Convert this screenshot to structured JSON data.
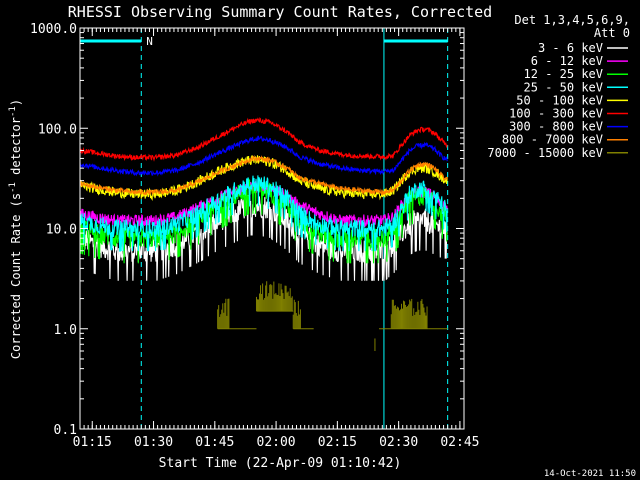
{
  "chart_data": {
    "type": "line",
    "title": "RHESSI Observing Summary Count Rates, Corrected",
    "xlabel": "Start Time (22-Apr-09 01:10:42)",
    "ylabel": "Corrected Count Rate (s^-1 detector^-1)",
    "ylabel_parts": {
      "main": "Corrected Count Rate (s",
      "sup1": "-1",
      "mid": " detector",
      "sup2": "-1",
      "end": ")"
    },
    "yscale": "log",
    "ylim": [
      0.1,
      1000
    ],
    "xlim_minutes": [
      1.3,
      95.3
    ],
    "x_ticks": [
      {
        "label": "01:15",
        "minutes": 4.3
      },
      {
        "label": "01:30",
        "minutes": 19.3
      },
      {
        "label": "01:45",
        "minutes": 34.3
      },
      {
        "label": "02:00",
        "minutes": 49.3
      },
      {
        "label": "02:15",
        "minutes": 64.3
      },
      {
        "label": "02:30",
        "minutes": 79.3
      },
      {
        "label": "02:45",
        "minutes": 94.3
      }
    ],
    "y_ticks": [
      {
        "label": "0.1",
        "value": 0.1
      },
      {
        "label": "1.0",
        "value": 1
      },
      {
        "label": "10.0",
        "value": 10
      },
      {
        "label": "100.0",
        "value": 100
      },
      {
        "label": "1000.0",
        "value": 1000
      }
    ],
    "legend_header": [
      "Det 1,3,4,5,6,9,",
      "Att 0"
    ],
    "legend_position": "right",
    "night_intervals": [
      [
        1.3,
        16.3
      ],
      [
        75.7,
        91.3
      ]
    ],
    "night_label": "N",
    "day_boundaries_solid": [
      1.3,
      75.7
    ],
    "day_boundaries_dashed": [
      16.3,
      91.3
    ],
    "curve_times": [
      1.3,
      5,
      10,
      15,
      20,
      25,
      30,
      35,
      40,
      43,
      45,
      48,
      52,
      55,
      60,
      65,
      70,
      75.7,
      78,
      80,
      82,
      84,
      86,
      88,
      90,
      91.3
    ],
    "series": [
      {
        "name": "3 - 6 keV",
        "color": "#ffffff",
        "noise": 0.12,
        "values": [
          8,
          7,
          6,
          6,
          6,
          7,
          9,
          12,
          15,
          17,
          17,
          16,
          12,
          9,
          7,
          6,
          6,
          6,
          7,
          9,
          11,
          12,
          12,
          11,
          10,
          10
        ]
      },
      {
        "name": "6 - 12 keV",
        "color": "#ff00ff",
        "noise": 0.06,
        "values": [
          14,
          13,
          12,
          12,
          12,
          13,
          16,
          20,
          24,
          26,
          26,
          25,
          21,
          17,
          14,
          12,
          12,
          12,
          13,
          17,
          21,
          23,
          23,
          21,
          17,
          16
        ]
      },
      {
        "name": "12 - 25 keV",
        "color": "#00ff00",
        "noise": 0.1,
        "values": [
          10,
          9,
          8,
          8,
          8,
          9,
          12,
          17,
          22,
          25,
          25,
          23,
          17,
          12,
          9,
          8,
          8,
          8,
          9,
          14,
          19,
          21,
          21,
          18,
          14,
          13
        ]
      },
      {
        "name": "25 - 50 keV",
        "color": "#00ffff",
        "noise": 0.09,
        "values": [
          12,
          11,
          10,
          10,
          10,
          11,
          14,
          19,
          25,
          28,
          28,
          26,
          20,
          14,
          11,
          10,
          10,
          10,
          11,
          16,
          22,
          25,
          25,
          22,
          17,
          15
        ]
      },
      {
        "name": "50 - 100 keV",
        "color": "#ffff00",
        "noise": 0.05,
        "values": [
          27,
          25,
          23,
          22,
          22,
          24,
          29,
          37,
          45,
          48,
          48,
          46,
          38,
          30,
          25,
          23,
          22,
          22,
          24,
          30,
          37,
          40,
          40,
          37,
          32,
          30
        ]
      },
      {
        "name": "100 - 300 keV",
        "color": "#ff0000",
        "noise": 0.025,
        "values": [
          60,
          57,
          53,
          51,
          51,
          54,
          64,
          82,
          105,
          118,
          120,
          114,
          92,
          72,
          60,
          55,
          53,
          52,
          53,
          68,
          85,
          96,
          98,
          90,
          74,
          68
        ]
      },
      {
        "name": "300 - 800 keV",
        "color": "#0000ff",
        "noise": 0.025,
        "values": [
          44,
          41,
          38,
          36,
          36,
          38,
          45,
          56,
          69,
          77,
          79,
          76,
          64,
          52,
          44,
          40,
          38,
          37,
          38,
          48,
          60,
          67,
          68,
          62,
          52,
          48
        ]
      },
      {
        "name": "800 - 7000 keV",
        "color": "#ff8000",
        "noise": 0.025,
        "values": [
          28,
          26,
          24,
          23,
          23,
          24,
          29,
          36,
          44,
          49,
          50,
          48,
          40,
          32,
          28,
          25,
          24,
          23,
          24,
          30,
          38,
          43,
          44,
          40,
          33,
          30
        ]
      },
      {
        "name": "7000 - 15000 keV",
        "color": "#808000",
        "noise": 0.0,
        "values": []
      }
    ],
    "olive_segments": [
      [
        [
          36.5,
          0.0
        ],
        [
          36.5,
          1.0
        ],
        [
          37,
          1.0
        ],
        [
          37,
          1.5
        ],
        [
          37.5,
          1.5
        ],
        [
          37.5,
          2.0
        ]
      ],
      [
        [
          45.5,
          2.0
        ],
        [
          46,
          2.5
        ],
        [
          47,
          3.0
        ],
        [
          48,
          3.8
        ],
        [
          49,
          3.2
        ],
        [
          50,
          2.8
        ]
      ],
      [
        [
          51,
          2.5
        ],
        [
          52,
          1.8
        ],
        [
          53,
          1.5
        ],
        [
          53.5,
          1.2
        ],
        [
          54,
          1.0
        ],
        [
          57,
          1.0
        ]
      ]
    ],
    "olive_blocks": [
      {
        "t0": 35.0,
        "t1": 38.0,
        "low": 1.0,
        "high": 2.0
      },
      {
        "t0": 38.0,
        "t1": 44.5,
        "low": 1.0,
        "high": 1.0
      },
      {
        "t0": 44.5,
        "t1": 53.5,
        "low": 1.5,
        "high": 3.0
      },
      {
        "t0": 53.5,
        "t1": 55.5,
        "low": 1.0,
        "high": 2.0
      },
      {
        "t0": 55.5,
        "t1": 58.5,
        "low": 1.0,
        "high": 1.0
      },
      {
        "t0": 74.5,
        "t1": 77.5,
        "low": 1.0,
        "high": 1.0
      },
      {
        "t0": 77.5,
        "t1": 86.5,
        "low": 1.0,
        "high": 2.0
      },
      {
        "t0": 86.5,
        "t1": 91.3,
        "low": 1.0,
        "high": 1.0
      }
    ],
    "olive_isolated": {
      "t": 73.5,
      "low": 0.6,
      "high": 0.8
    }
  },
  "footer_timestamp": "14-Oct-2021 11:50"
}
